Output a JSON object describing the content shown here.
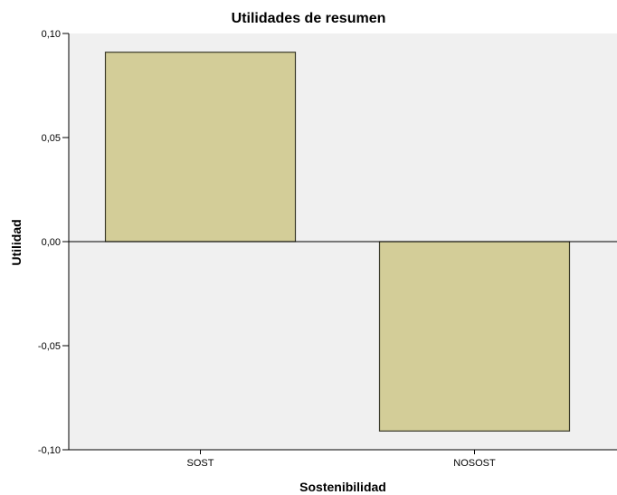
{
  "chart_data": {
    "type": "bar",
    "title": "Utilidades de resumen",
    "xlabel": "Sostenibilidad",
    "ylabel": "Utilidad",
    "categories": [
      "SOST",
      "NOSOST"
    ],
    "values": [
      0.091,
      -0.091
    ],
    "ylim": [
      -0.1,
      0.1
    ],
    "yticks": [
      0.1,
      0.05,
      0.0,
      -0.05,
      -0.1
    ],
    "ytick_labels": [
      "0,10",
      "0,05",
      "0,00",
      "-0,05",
      "-0,10"
    ],
    "grid": false,
    "legend": "none",
    "bar_color": "#d3cd98",
    "bar_edge_color": "#3a3a2a",
    "plot_background": "#f0f0f0"
  }
}
